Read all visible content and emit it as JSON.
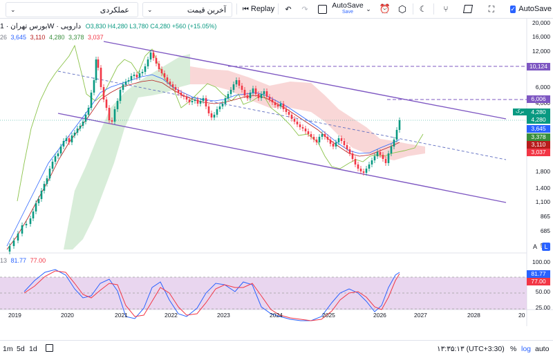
{
  "toolbar": {
    "dropdown1": "عملکردی",
    "dropdown2": "آخرین قیمت",
    "replay": "Replay",
    "autosave_title": "AutoSave",
    "autosave_sub": "Save",
    "autosave_check": "AutoSave"
  },
  "legend": {
    "symbol": "بورس تهران · 1W · دارویی",
    "ohlc": "O3,830 H4,280 L3,780 C4,280 +560 (+15.05%)",
    "ichi_period": "26",
    "ichi_values": [
      "3,645",
      "3,110",
      "4,280",
      "3,378",
      "3,037"
    ],
    "osc_period": "13",
    "osc_values": [
      "81.77",
      "77.00"
    ]
  },
  "price_axis": [
    "20,000",
    "16,000",
    "12,000",
    "9,000",
    "6,000",
    "4,000",
    "3,000",
    "1,800",
    "1,400",
    "1,100",
    "865",
    "685",
    "540"
  ],
  "price_tags": [
    {
      "label": "10,124",
      "color": "#7e57c2"
    },
    {
      "label": "6,006",
      "color": "#7e57c2"
    },
    {
      "label": "4,280",
      "color": "#089981"
    },
    {
      "label": "4,280",
      "color": "#089981"
    },
    {
      "label": "3,645",
      "color": "#2962ff"
    },
    {
      "label": "3,378",
      "color": "#388e3c"
    },
    {
      "label": "3,110",
      "color": "#b71c1c"
    },
    {
      "label": "3,037",
      "color": "#f23645"
    }
  ],
  "tag_badge": "برک",
  "scale_buttons": {
    "a": "A",
    "l": "L"
  },
  "osc_axis": [
    "100.00",
    "75.00",
    "50.00",
    "25.00",
    "0.00"
  ],
  "osc_tags": [
    {
      "label": "81.77",
      "color": "#2962ff"
    },
    {
      "label": "77.00",
      "color": "#f23645"
    }
  ],
  "time_axis": [
    "2019",
    "2020",
    "2021",
    "2022",
    "2023",
    "2024",
    "2025",
    "2026",
    "2027",
    "2028",
    "20"
  ],
  "bottom": {
    "ranges": [
      "1m",
      "5d",
      "1d"
    ],
    "clock": "۱۳:۳۵:۱۳ (UTC+3:30)",
    "percent": "%",
    "log": "log",
    "auto": "auto"
  },
  "colors": {
    "up": "#089981",
    "down": "#f23645",
    "channel": "#7e57c2",
    "osc_fill": "#e1c8ea"
  }
}
